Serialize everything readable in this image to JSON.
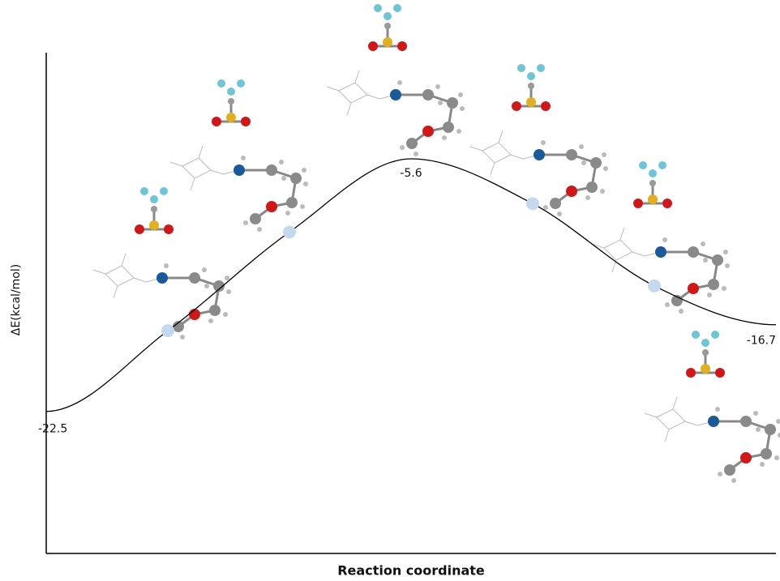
{
  "chart_data": {
    "type": "line",
    "x_label": "Reaction coordinate",
    "y_label": "ΔE(kcal/mol)",
    "categories": [
      null,
      null,
      null,
      null,
      null,
      null,
      null
    ],
    "values": [
      -22.5,
      -17.1,
      -10.5,
      -5.6,
      -8.6,
      -14.1,
      -16.7
    ],
    "color": "#000000",
    "marker_color": "#c5d9ee",
    "ylim": [
      -32,
      1.5
    ]
  }
}
